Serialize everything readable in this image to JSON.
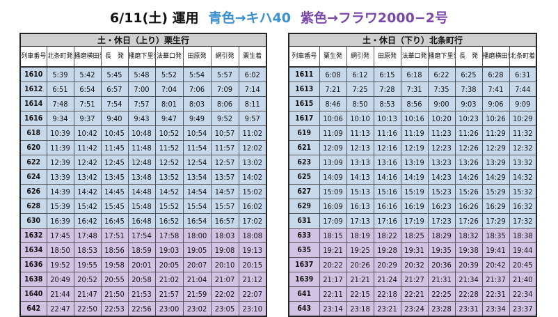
{
  "title": {
    "date": "6/11(土) 運用",
    "blue": "青色→キハ40",
    "purple": "紫色→フラワ2000−2号"
  },
  "colors": {
    "blue_rows": "#c9d9ec",
    "purple_rows": "#d2c2e4",
    "header": "#cfcfcf"
  },
  "left": {
    "heading": "土・休日（上り）栗生行",
    "columns": [
      "列車番号",
      "北条町発",
      "播磨横田発",
      "長　発",
      "播磨下里発",
      "法華口発",
      "田原発",
      "網引発",
      "粟生着"
    ],
    "rows": [
      {
        "color": "blue",
        "cells": [
          "1610",
          "5:39",
          "5:42",
          "5:45",
          "5:48",
          "5:52",
          "5:54",
          "5:57",
          "6:02"
        ]
      },
      {
        "color": "blue",
        "cells": [
          "1612",
          "6:51",
          "6:54",
          "6:57",
          "7:00",
          "7:04",
          "7:06",
          "7:09",
          "7:14"
        ]
      },
      {
        "color": "blue",
        "cells": [
          "1614",
          "7:48",
          "7:51",
          "7:54",
          "7:57",
          "8:01",
          "8:03",
          "8:06",
          "8:11"
        ]
      },
      {
        "color": "blue",
        "cells": [
          "1616",
          "9:34",
          "9:37",
          "9:40",
          "9:43",
          "9:47",
          "9:49",
          "9:52",
          "9:57"
        ]
      },
      {
        "color": "blue",
        "cells": [
          "618",
          "10:39",
          "10:42",
          "10:45",
          "10:48",
          "10:52",
          "10:54",
          "10:57",
          "11:02"
        ]
      },
      {
        "color": "blue",
        "cells": [
          "620",
          "11:39",
          "11:42",
          "11:45",
          "11:48",
          "11:52",
          "11:54",
          "11:57",
          "12:02"
        ]
      },
      {
        "color": "blue",
        "cells": [
          "622",
          "12:39",
          "12:42",
          "12:45",
          "12:48",
          "12:52",
          "12:54",
          "12:57",
          "13:02"
        ]
      },
      {
        "color": "blue",
        "cells": [
          "624",
          "13:39",
          "13:42",
          "13:45",
          "13:48",
          "13:52",
          "13:54",
          "13:57",
          "14:02"
        ]
      },
      {
        "color": "blue",
        "cells": [
          "626",
          "14:39",
          "14:42",
          "14:45",
          "14:48",
          "14:52",
          "14:54",
          "14:57",
          "15:02"
        ]
      },
      {
        "color": "blue",
        "cells": [
          "628",
          "15:39",
          "15:42",
          "15:45",
          "15:48",
          "15:52",
          "15:54",
          "15:57",
          "16:02"
        ]
      },
      {
        "color": "blue",
        "cells": [
          "630",
          "16:39",
          "16:42",
          "16:45",
          "16:48",
          "16:52",
          "16:54",
          "16:57",
          "17:02"
        ]
      },
      {
        "color": "purple",
        "cells": [
          "1632",
          "17:45",
          "17:48",
          "17:51",
          "17:54",
          "17:58",
          "18:00",
          "18:03",
          "18:08"
        ]
      },
      {
        "color": "purple",
        "cells": [
          "1634",
          "18:50",
          "18:53",
          "18:56",
          "18:59",
          "19:03",
          "19:05",
          "19:08",
          "19:13"
        ]
      },
      {
        "color": "purple",
        "cells": [
          "1636",
          "19:52",
          "19:55",
          "19:58",
          "20:01",
          "20:05",
          "20:07",
          "20:10",
          "20:15"
        ]
      },
      {
        "color": "purple",
        "cells": [
          "1638",
          "20:49",
          "20:52",
          "20:55",
          "20:58",
          "21:02",
          "21:04",
          "21:07",
          "21:12"
        ]
      },
      {
        "color": "purple",
        "cells": [
          "1640",
          "21:44",
          "21:47",
          "21:50",
          "21:53",
          "21:57",
          "21:59",
          "22:02",
          "22:07"
        ]
      },
      {
        "color": "purple",
        "cells": [
          "642",
          "22:47",
          "22:50",
          "22:53",
          "22:56",
          "23:00",
          "23:02",
          "23:05",
          "23:10"
        ]
      }
    ]
  },
  "right": {
    "heading": "土・休日（下り）北条町行",
    "columns": [
      "列車番号",
      "粟生発",
      "網引発",
      "田原発",
      "法華口発",
      "播磨下里発",
      "長　発",
      "播磨横田発",
      "北条町着"
    ],
    "rows": [
      {
        "color": "blue",
        "cells": [
          "1611",
          "6:08",
          "6:12",
          "6:15",
          "6:18",
          "6:22",
          "6:25",
          "6:28",
          "6:31"
        ]
      },
      {
        "color": "blue",
        "cells": [
          "1613",
          "7:21",
          "7:25",
          "7:28",
          "7:31",
          "7:35",
          "7:38",
          "7:41",
          "7:44"
        ]
      },
      {
        "color": "blue",
        "cells": [
          "1615",
          "8:46",
          "8:50",
          "8:53",
          "8:56",
          "9:00",
          "9:03",
          "9:06",
          "9:09"
        ]
      },
      {
        "color": "blue",
        "cells": [
          "1617",
          "10:06",
          "10:10",
          "10:13",
          "10:16",
          "10:20",
          "10:23",
          "10:26",
          "10:29"
        ]
      },
      {
        "color": "blue",
        "cells": [
          "619",
          "11:09",
          "11:13",
          "11:16",
          "11:19",
          "11:23",
          "11:26",
          "11:29",
          "11:32"
        ]
      },
      {
        "color": "blue",
        "cells": [
          "621",
          "12:09",
          "12:13",
          "12:16",
          "12:19",
          "12:23",
          "12:26",
          "12:29",
          "12:32"
        ]
      },
      {
        "color": "blue",
        "cells": [
          "623",
          "13:09",
          "13:13",
          "13:16",
          "13:19",
          "13:23",
          "13:26",
          "13:29",
          "13:32"
        ]
      },
      {
        "color": "blue",
        "cells": [
          "625",
          "14:09",
          "14:13",
          "14:16",
          "14:19",
          "14:23",
          "14:26",
          "14:29",
          "14:32"
        ]
      },
      {
        "color": "blue",
        "cells": [
          "627",
          "15:09",
          "15:13",
          "15:16",
          "15:19",
          "15:23",
          "15:26",
          "15:29",
          "15:32"
        ]
      },
      {
        "color": "blue",
        "cells": [
          "629",
          "16:09",
          "16:13",
          "16:16",
          "16:19",
          "16:23",
          "16:26",
          "16:29",
          "16:32"
        ]
      },
      {
        "color": "blue",
        "cells": [
          "631",
          "17:09",
          "17:13",
          "17:16",
          "17:19",
          "17:23",
          "17:26",
          "17:29",
          "17:32"
        ]
      },
      {
        "color": "purple",
        "cells": [
          "633",
          "18:15",
          "18:19",
          "18:22",
          "18:25",
          "18:29",
          "18:32",
          "18:35",
          "18:38"
        ]
      },
      {
        "color": "purple",
        "cells": [
          "635",
          "19:21",
          "19:25",
          "19:28",
          "19:31",
          "19:35",
          "19:38",
          "19:41",
          "19:44"
        ]
      },
      {
        "color": "purple",
        "cells": [
          "1637",
          "20:22",
          "20:26",
          "20:29",
          "20:32",
          "20:36",
          "20:39",
          "20:42",
          "20:45"
        ]
      },
      {
        "color": "purple",
        "cells": [
          "1639",
          "21:17",
          "21:21",
          "21:24",
          "21:27",
          "21:31",
          "21:34",
          "21:37",
          "21:40"
        ]
      },
      {
        "color": "purple",
        "cells": [
          "641",
          "22:11",
          "22:15",
          "22:18",
          "22:21",
          "22:25",
          "22:28",
          "22:31",
          "22:34"
        ]
      },
      {
        "color": "purple",
        "cells": [
          "643",
          "23:14",
          "23:18",
          "23:21",
          "23:24",
          "23:28",
          "23:31",
          "23:34",
          "23:37"
        ]
      }
    ]
  }
}
